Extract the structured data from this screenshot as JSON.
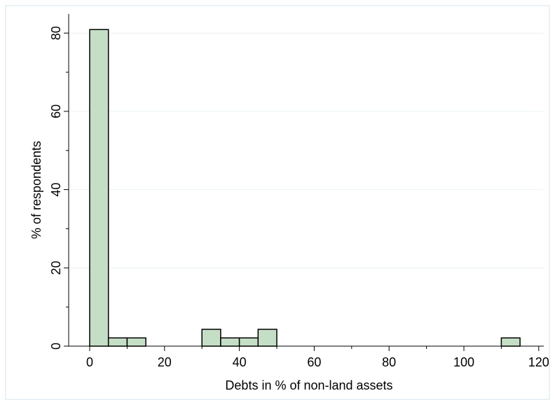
{
  "chart_data": {
    "type": "bar",
    "title": "",
    "xlabel": "Debts in % of non-land assets",
    "ylabel": "% of respondents",
    "xlim": [
      -5,
      120
    ],
    "ylim": [
      0,
      85
    ],
    "xticks": [
      "0",
      "20",
      "40",
      "60",
      "80",
      "100",
      "120"
    ],
    "yticks": [
      "0",
      "20",
      "40",
      "60",
      "80"
    ],
    "grid": true,
    "bin_width": 5,
    "bins": [
      {
        "start": 0,
        "value": 80.9
      },
      {
        "start": 5,
        "value": 2.1
      },
      {
        "start": 10,
        "value": 2.1
      },
      {
        "start": 30,
        "value": 4.3
      },
      {
        "start": 35,
        "value": 2.1
      },
      {
        "start": 40,
        "value": 2.1
      },
      {
        "start": 45,
        "value": 4.3
      },
      {
        "start": 110,
        "value": 2.1
      }
    ],
    "colors": {
      "bar_fill": "#c5dfc6",
      "bar_stroke": "#000000",
      "grid": "#e8f0f4",
      "border": "#d7e4ec"
    }
  }
}
